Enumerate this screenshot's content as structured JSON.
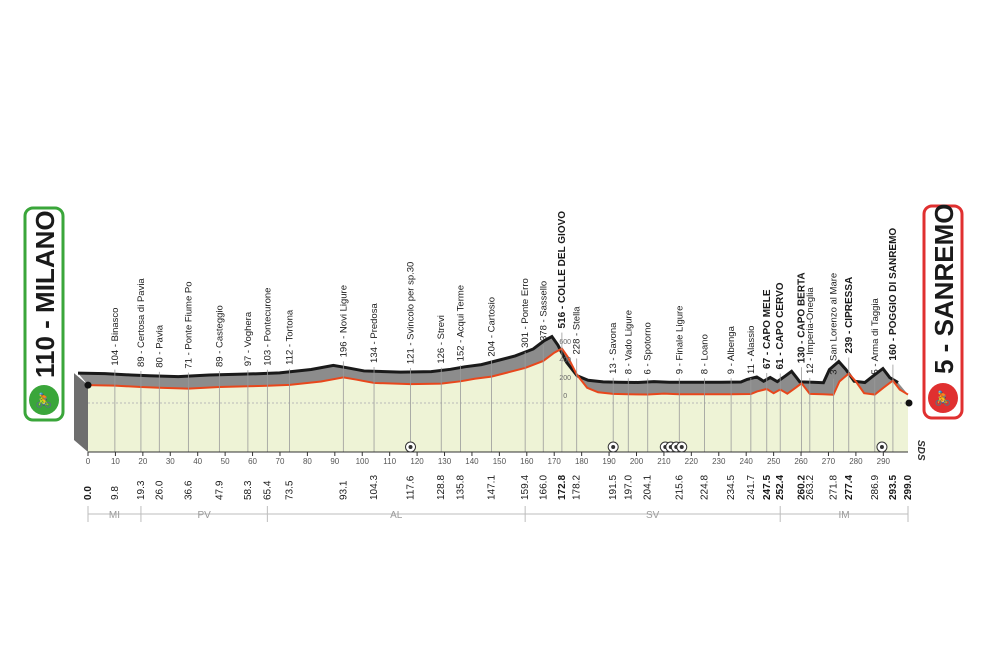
{
  "start": {
    "label": "110 - MILANO",
    "color": "#3aa63a"
  },
  "finish": {
    "label": "5 - SANREMO",
    "color": "#e03030"
  },
  "colors": {
    "route": "#e8471c",
    "terrain": "#8c8c8c",
    "ground": "#eef3d6",
    "ridge": "#1a1a1a"
  },
  "places": [
    {
      "label": "104 - Binasco",
      "km": 9.8
    },
    {
      "label": "89 - Certosa di Pavia",
      "km": 19.3
    },
    {
      "label": "80 - Pavia",
      "km": 26.0
    },
    {
      "label": "71 - Ponte Fiume Po",
      "km": 36.6
    },
    {
      "label": "89 - Casteggio",
      "km": 47.9
    },
    {
      "label": "97 - Voghera",
      "km": 58.3
    },
    {
      "label": "103 - Pontecurone",
      "km": 65.4
    },
    {
      "label": "112 - Tortona",
      "km": 73.5
    },
    {
      "label": "196 - Novi Ligure",
      "km": 93.1
    },
    {
      "label": "134 - Predosa",
      "km": 104.3
    },
    {
      "label": "121 - Svincolo per sp.30",
      "km": 117.6
    },
    {
      "label": "126 - Strevi",
      "km": 128.8
    },
    {
      "label": "152 - Acqui Terme",
      "km": 135.8
    },
    {
      "label": "204 - Cartosio",
      "km": 147.1
    },
    {
      "label": "301 - Ponte Erro",
      "km": 159.4
    },
    {
      "label": "378 - Sassello",
      "km": 166.0
    },
    {
      "label": "516 - COLLE DEL GIOVO",
      "km": 172.8,
      "bold": true
    },
    {
      "label": "228 - Stella",
      "km": 178.2
    },
    {
      "label": "13 - Savona",
      "km": 191.5
    },
    {
      "label": "8 - Vado Ligure",
      "km": 197.0
    },
    {
      "label": "6 - Spotorno",
      "km": 204.1
    },
    {
      "label": "9 - Finale Ligure",
      "km": 215.6
    },
    {
      "label": "8 - Loano",
      "km": 224.8
    },
    {
      "label": "9 - Albenga",
      "km": 234.5
    },
    {
      "label": "11 - Alassio",
      "km": 241.7
    },
    {
      "label": "67 - CAPO MELE",
      "km": 247.5,
      "bold": true
    },
    {
      "label": "61 - CAPO CERVO",
      "km": 252.4,
      "bold": true
    },
    {
      "label": "130 - CAPO BERTA",
      "km": 260.2,
      "bold": true
    },
    {
      "label": "12 - Imperia-Oneglia",
      "km": 263.2
    },
    {
      "label": "3 - San Lorenzo al Mare",
      "km": 271.8
    },
    {
      "label": "239 - CIPRESSA",
      "km": 277.4,
      "bold": true
    },
    {
      "label": "5 - Arma di Taggia",
      "km": 286.9
    },
    {
      "label": "160 - POGGIO DI SANREMO",
      "km": 293.5,
      "bold": true
    }
  ],
  "km_marks": [
    {
      "km": "0.0",
      "v": 0,
      "bold": true
    },
    {
      "km": "9.8",
      "v": 9.8
    },
    {
      "km": "19.3",
      "v": 19.3
    },
    {
      "km": "26.0",
      "v": 26.0
    },
    {
      "km": "36.6",
      "v": 36.6
    },
    {
      "km": "47.9",
      "v": 47.9
    },
    {
      "km": "58.3",
      "v": 58.3
    },
    {
      "km": "65.4",
      "v": 65.4
    },
    {
      "km": "73.5",
      "v": 73.5
    },
    {
      "km": "93.1",
      "v": 93.1
    },
    {
      "km": "104.3",
      "v": 104.3
    },
    {
      "km": "117.6",
      "v": 117.6
    },
    {
      "km": "128.8",
      "v": 128.8
    },
    {
      "km": "135.8",
      "v": 135.8
    },
    {
      "km": "147.1",
      "v": 147.1
    },
    {
      "km": "159.4",
      "v": 159.4
    },
    {
      "km": "166.0",
      "v": 166.0
    },
    {
      "km": "172.8",
      "v": 172.8,
      "bold": true
    },
    {
      "km": "178.2",
      "v": 178.2
    },
    {
      "km": "191.5",
      "v": 191.5
    },
    {
      "km": "197.0",
      "v": 197.0
    },
    {
      "km": "204.1",
      "v": 204.1
    },
    {
      "km": "215.6",
      "v": 215.6
    },
    {
      "km": "224.8",
      "v": 224.8
    },
    {
      "km": "234.5",
      "v": 234.5
    },
    {
      "km": "241.7",
      "v": 241.7
    },
    {
      "km": "247.5",
      "v": 247.5,
      "bold": true
    },
    {
      "km": "252.4",
      "v": 252.4,
      "bold": true
    },
    {
      "km": "260.2",
      "v": 260.2,
      "bold": true
    },
    {
      "km": "263.2",
      "v": 263.2
    },
    {
      "km": "271.8",
      "v": 271.8
    },
    {
      "km": "277.4",
      "v": 277.4,
      "bold": true
    },
    {
      "km": "286.9",
      "v": 286.9
    },
    {
      "km": "293.5",
      "v": 293.5,
      "bold": true
    },
    {
      "km": "299.0",
      "v": 299.0,
      "bold": true
    }
  ],
  "axis_ticks": [
    "0",
    "10",
    "20",
    "30",
    "40",
    "50",
    "60",
    "70",
    "80",
    "90",
    "100",
    "110",
    "120",
    "130",
    "140",
    "150",
    "160",
    "170",
    "180",
    "190",
    "200",
    "210",
    "220",
    "230",
    "240",
    "250",
    "260",
    "270",
    "280",
    "290"
  ],
  "elev_ticks": [
    "600",
    "400",
    "200",
    "0"
  ],
  "provinces": [
    {
      "label": "MI",
      "from": 0,
      "to": 19.3
    },
    {
      "label": "PV",
      "from": 19.3,
      "to": 65.4
    },
    {
      "label": "AL",
      "from": 65.4,
      "to": 159.4
    },
    {
      "label": "SV",
      "from": 159.4,
      "to": 252.4
    },
    {
      "label": "IM",
      "from": 252.4,
      "to": 299.0
    }
  ],
  "sprints_km": [
    117.6,
    191.5,
    210.5,
    212.5,
    214.5,
    216.5,
    289.5
  ],
  "footer_logo": "SDS",
  "profile": [
    [
      0,
      110
    ],
    [
      9.8,
      104
    ],
    [
      19.3,
      89
    ],
    [
      26,
      80
    ],
    [
      36.6,
      71
    ],
    [
      47.9,
      89
    ],
    [
      58.3,
      97
    ],
    [
      65.4,
      103
    ],
    [
      73.5,
      112
    ],
    [
      85,
      150
    ],
    [
      93.1,
      196
    ],
    [
      98,
      170
    ],
    [
      104.3,
      134
    ],
    [
      117.6,
      121
    ],
    [
      128.8,
      126
    ],
    [
      135.8,
      152
    ],
    [
      141,
      180
    ],
    [
      147.1,
      204
    ],
    [
      153,
      250
    ],
    [
      159.4,
      301
    ],
    [
      166,
      378
    ],
    [
      170,
      470
    ],
    [
      172.8,
      516
    ],
    [
      175,
      420
    ],
    [
      178.2,
      228
    ],
    [
      182,
      80
    ],
    [
      186,
      30
    ],
    [
      191.5,
      13
    ],
    [
      197,
      8
    ],
    [
      204.1,
      6
    ],
    [
      210,
      15
    ],
    [
      215.6,
      9
    ],
    [
      224.8,
      8
    ],
    [
      234.5,
      9
    ],
    [
      241.7,
      11
    ],
    [
      244,
      40
    ],
    [
      247.5,
      67
    ],
    [
      250,
      20
    ],
    [
      252.4,
      61
    ],
    [
      255,
      15
    ],
    [
      258,
      80
    ],
    [
      260.2,
      130
    ],
    [
      262,
      60
    ],
    [
      263.2,
      12
    ],
    [
      268,
      8
    ],
    [
      271.8,
      3
    ],
    [
      274,
      150
    ],
    [
      277.4,
      239
    ],
    [
      280,
      150
    ],
    [
      283,
      20
    ],
    [
      286.9,
      5
    ],
    [
      290,
      80
    ],
    [
      293.5,
      160
    ],
    [
      296,
      60
    ],
    [
      299,
      5
    ]
  ]
}
